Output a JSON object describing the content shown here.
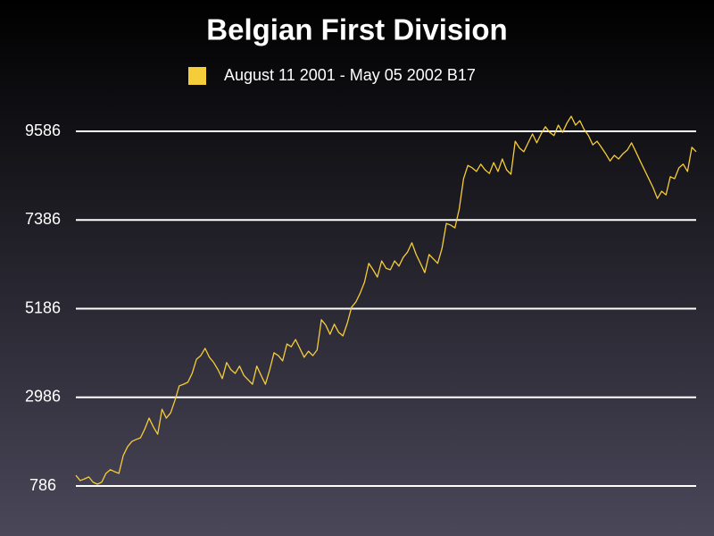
{
  "chart_data": {
    "type": "line",
    "title": "Belgian First Division",
    "series": [
      {
        "name": "August 11 2001  - May 05 2002 B17",
        "color": "#f5cc3a",
        "values": [
          1050,
          920,
          960,
          1010,
          880,
          830,
          880,
          1100,
          1190,
          1140,
          1100,
          1540,
          1760,
          1890,
          1940,
          1980,
          2200,
          2470,
          2250,
          2070,
          2690,
          2470,
          2600,
          2910,
          3270,
          3310,
          3360,
          3580,
          3930,
          4020,
          4200,
          3980,
          3850,
          3670,
          3450,
          3850,
          3670,
          3580,
          3760,
          3530,
          3420,
          3310,
          3760,
          3530,
          3310,
          3670,
          4090,
          4020,
          3890,
          4310,
          4240,
          4420,
          4200,
          3980,
          4130,
          4020,
          4160,
          4910,
          4780,
          4550,
          4800,
          4600,
          4510,
          4820,
          5220,
          5350,
          5570,
          5840,
          6310,
          6150,
          5970,
          6370,
          6190,
          6150,
          6370,
          6240,
          6460,
          6590,
          6820,
          6530,
          6310,
          6080,
          6530,
          6420,
          6310,
          6680,
          7300,
          7260,
          7190,
          7660,
          8410,
          8740,
          8680,
          8590,
          8770,
          8630,
          8540,
          8810,
          8590,
          8900,
          8630,
          8520,
          9340,
          9170,
          9080,
          9300,
          9520,
          9300,
          9520,
          9700,
          9560,
          9480,
          9740,
          9560,
          9790,
          9960,
          9740,
          9850,
          9630,
          9480,
          9250,
          9340,
          9190,
          9030,
          8850,
          8990,
          8900,
          9030,
          9120,
          9300,
          9080,
          8850,
          8630,
          8410,
          8190,
          7920,
          8100,
          8010,
          8460,
          8410,
          8680,
          8770,
          8590,
          9190,
          9080
        ]
      }
    ],
    "ylim": [
      786,
      9586
    ],
    "yticks": [
      786,
      2986,
      5186,
      7386,
      9586
    ],
    "grid": true
  }
}
